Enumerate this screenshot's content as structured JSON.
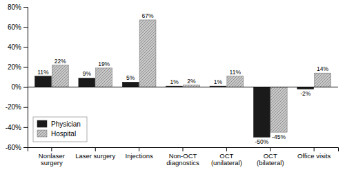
{
  "chart_data": {
    "type": "bar",
    "categories": [
      "Nonlaser\nsurgery",
      "Laser surgery",
      "Injections",
      "Non-OCT\ndiagnostics",
      "OCT\n(unilateral)",
      "OCT\n(bilateral)",
      "Office visits"
    ],
    "series": [
      {
        "name": "Physician",
        "color": "#1a1a1a",
        "values": [
          11,
          9,
          5,
          1,
          1,
          -50,
          -2
        ],
        "value_labels": [
          "11%",
          "9%",
          "5%",
          "1%",
          "1%",
          "-50%",
          "-2%"
        ]
      },
      {
        "name": "Hospital",
        "color": "#c8c8c8",
        "values": [
          22,
          19,
          67,
          2,
          11,
          -45,
          14
        ],
        "value_labels": [
          "22%",
          "19%",
          "67%",
          "2%",
          "11%",
          "-45%",
          "14%"
        ]
      }
    ],
    "ylim": [
      -60,
      80
    ],
    "yticks": [
      {
        "value": -60,
        "label": "-60%"
      },
      {
        "value": -40,
        "label": "-40%"
      },
      {
        "value": -20,
        "label": "-20%"
      },
      {
        "value": 0,
        "label": "0%"
      },
      {
        "value": 20,
        "label": "20%"
      },
      {
        "value": 40,
        "label": "40%"
      },
      {
        "value": 60,
        "label": "60%"
      },
      {
        "value": 80,
        "label": "80%"
      }
    ],
    "data_labels": true,
    "legend": "lower left",
    "grid": false
  }
}
